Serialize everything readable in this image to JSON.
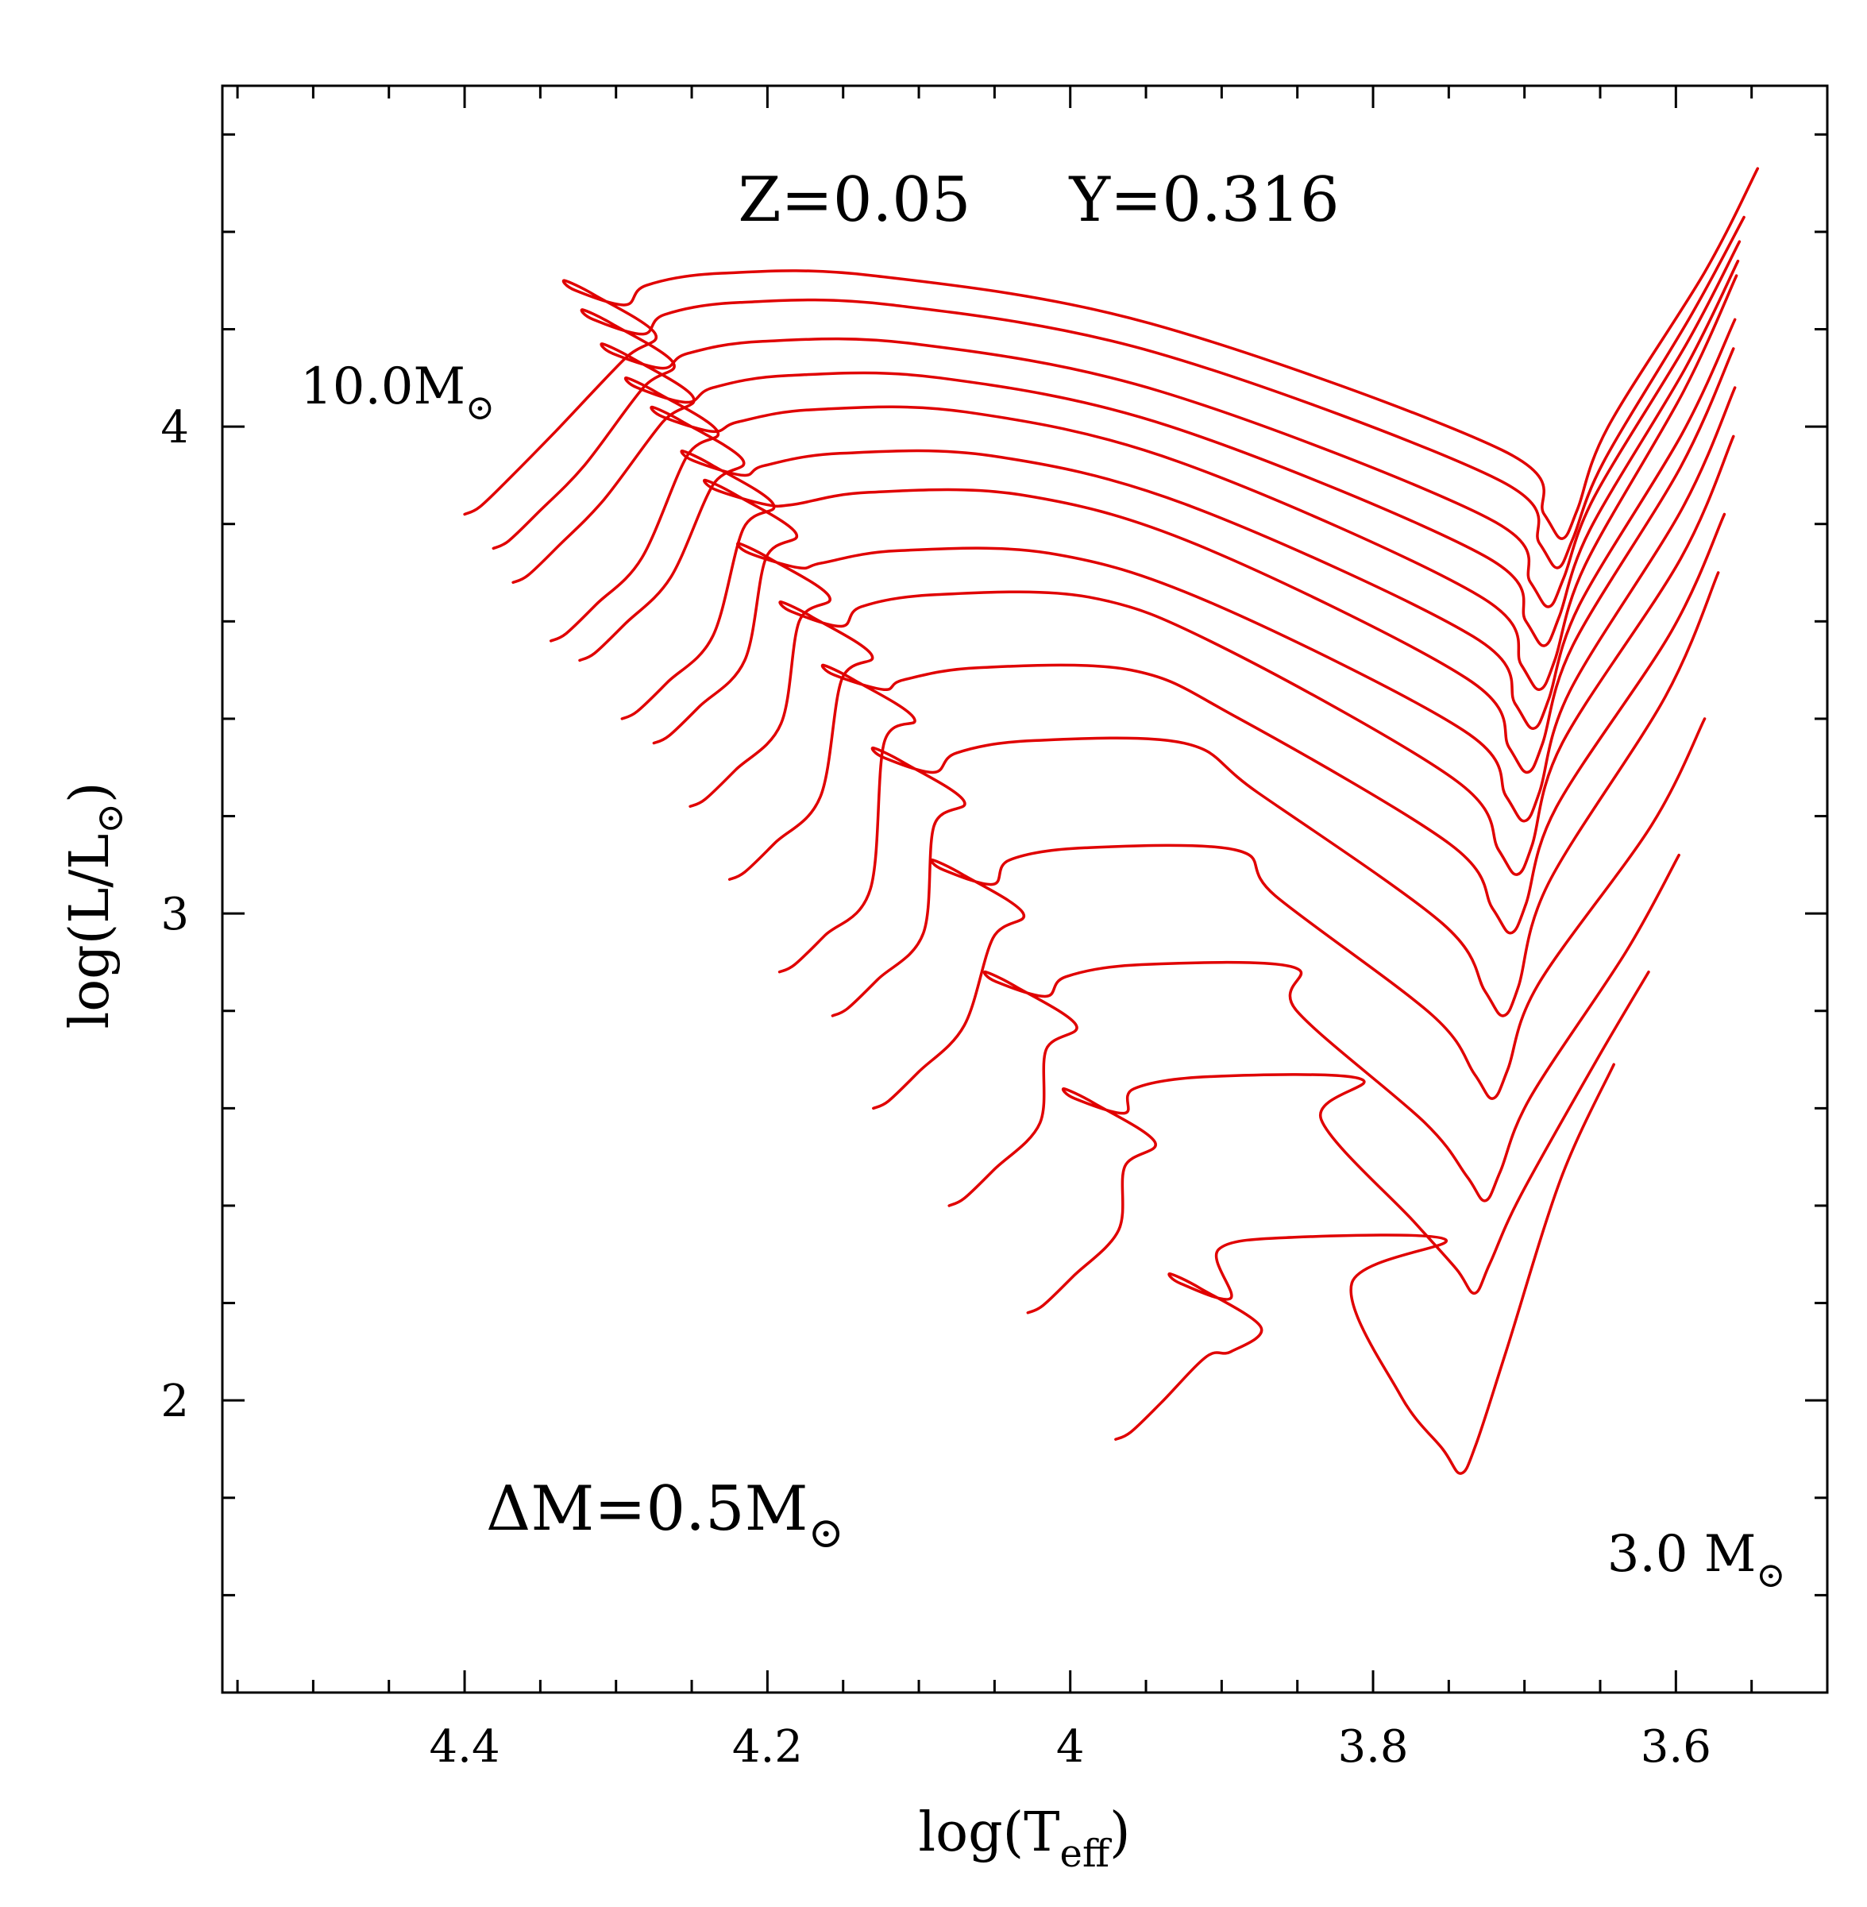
{
  "chart_data": {
    "type": "line",
    "title": "Z=0.05     Y=0.316",
    "xlabel": {
      "main": "log(T",
      "sub": "eff",
      "close": ")"
    },
    "ylabel": {
      "main": "log(L/L",
      "sym": "⊙",
      "close": ")"
    },
    "xlim": [
      4.56,
      3.5
    ],
    "ylim": [
      1.4,
      4.7
    ],
    "x_inverted": true,
    "grid": false,
    "x_ticks": [
      {
        "value": 4.4,
        "label": "4.4"
      },
      {
        "value": 4.2,
        "label": "4.2"
      },
      {
        "value": 4.0,
        "label": "4"
      },
      {
        "value": 3.8,
        "label": "3.8"
      },
      {
        "value": 3.6,
        "label": "3.6"
      }
    ],
    "y_ticks": [
      {
        "value": 2,
        "label": "2"
      },
      {
        "value": 3,
        "label": "3"
      },
      {
        "value": 4,
        "label": "4"
      }
    ],
    "x_minor_step": 0.05,
    "y_minor_step": 0.2,
    "color": "#e00000",
    "annotations": {
      "top_mass": {
        "text": "10.0M",
        "sym": "⊙"
      },
      "bottom_mass": {
        "text": "3.0 M",
        "sym": "⊙"
      },
      "delta": {
        "text": "ΔM=0.5M",
        "sym": "⊙"
      }
    },
    "series_summary": {
      "masses": [
        10.0,
        9.5,
        9.0,
        8.5,
        8.0,
        7.5,
        7.0,
        6.5,
        6.0,
        5.5,
        5.0,
        4.5,
        4.0,
        3.5,
        3.0
      ],
      "zams_logT": [
        4.4,
        4.381,
        4.368,
        4.343,
        4.324,
        4.296,
        4.275,
        4.251,
        4.225,
        4.192,
        4.157,
        4.13,
        4.08,
        4.028,
        3.97
      ],
      "zams_logL": [
        3.82,
        3.75,
        3.68,
        3.56,
        3.52,
        3.4,
        3.35,
        3.22,
        3.07,
        2.88,
        2.79,
        2.6,
        2.4,
        2.18,
        1.92
      ],
      "tams_logT": [
        4.274,
        4.262,
        4.249,
        4.233,
        4.216,
        4.196,
        4.181,
        4.159,
        4.131,
        4.103,
        4.07,
        4.031,
        3.996,
        3.944,
        3.874
      ],
      "tams_logL": [
        4.19,
        4.13,
        4.06,
        3.99,
        3.93,
        3.84,
        3.78,
        3.65,
        3.53,
        3.4,
        3.23,
        3.0,
        2.77,
        2.53,
        2.15
      ],
      "hook_logT": [
        4.28,
        4.268,
        4.253,
        4.236,
        4.219,
        4.202,
        4.183,
        4.164,
        4.138,
        4.11,
        4.075,
        4.04,
        4.003,
        3.958,
        3.902
      ],
      "hook_logL": [
        4.29,
        4.23,
        4.15,
        4.08,
        4.01,
        3.92,
        3.84,
        3.72,
        3.63,
        3.48,
        3.33,
        3.11,
        2.87,
        2.64,
        2.31
      ],
      "rgb_min_logT": [
        3.675,
        3.678,
        3.684,
        3.687,
        3.69,
        3.694,
        3.698,
        3.7,
        3.705,
        3.709,
        3.714,
        3.721,
        3.726,
        3.733,
        3.742
      ],
      "rgb_min_logL": [
        3.77,
        3.71,
        3.63,
        3.55,
        3.46,
        3.38,
        3.29,
        3.19,
        3.08,
        2.96,
        2.79,
        2.62,
        2.41,
        2.22,
        1.85
      ],
      "rgb_tip_logT": [
        3.546,
        3.555,
        3.558,
        3.559,
        3.56,
        3.561,
        3.562,
        3.561,
        3.562,
        3.568,
        3.572,
        3.581,
        3.598,
        3.618,
        3.641
      ],
      "rgb_tip_logL": [
        4.53,
        4.43,
        4.38,
        4.34,
        4.31,
        4.22,
        4.16,
        4.08,
        3.98,
        3.82,
        3.7,
        3.4,
        3.12,
        2.88,
        2.69
      ]
    }
  }
}
